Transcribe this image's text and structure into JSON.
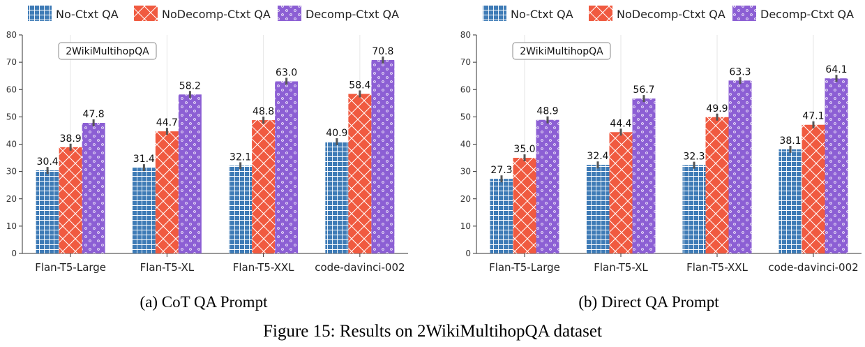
{
  "figure_caption": "Figure 15: Results on 2WikiMultihopQA dataset",
  "colors": {
    "No-Ctxt QA": "#3e7bb6",
    "NoDecomp-Ctxt QA": "#f05a40",
    "Decomp-Ctxt QA": "#8c5fd4"
  },
  "chart_data": [
    {
      "type": "bar",
      "caption": "(a) CoT QA Prompt",
      "annotation": "2WikiMultihopQA",
      "categories": [
        "Flan-T5-Large",
        "Flan-T5-XL",
        "Flan-T5-XXL",
        "code-davinci-002"
      ],
      "series": [
        {
          "name": "No-Ctxt QA",
          "values": [
            30.4,
            31.4,
            32.1,
            40.9
          ],
          "labels": [
            "30.4",
            "31.4",
            "32.1",
            "40.9"
          ]
        },
        {
          "name": "NoDecomp-Ctxt QA",
          "values": [
            38.9,
            44.7,
            48.8,
            58.4
          ],
          "labels": [
            "38.9",
            "44.7",
            "48.8",
            "58.4"
          ]
        },
        {
          "name": "Decomp-Ctxt QA",
          "values": [
            47.8,
            58.2,
            63.0,
            70.8
          ],
          "labels": [
            "47.8",
            "58.2",
            "63.0",
            "70.8"
          ]
        }
      ],
      "ylim": [
        0,
        80
      ],
      "yticks": [
        "0",
        "10",
        "20",
        "30",
        "40",
        "50",
        "60",
        "70",
        "80"
      ],
      "legend": "top",
      "grid": "vertical"
    },
    {
      "type": "bar",
      "caption": "(b) Direct QA Prompt",
      "annotation": "2WikiMultihopQA",
      "categories": [
        "Flan-T5-Large",
        "Flan-T5-XL",
        "Flan-T5-XXL",
        "code-davinci-002"
      ],
      "series": [
        {
          "name": "No-Ctxt QA",
          "values": [
            27.3,
            32.4,
            32.3,
            38.1
          ],
          "labels": [
            "27.3",
            "32.4",
            "32.3",
            "38.1"
          ]
        },
        {
          "name": "NoDecomp-Ctxt QA",
          "values": [
            35.0,
            44.4,
            49.9,
            47.1
          ],
          "labels": [
            "35.0",
            "44.4",
            "49.9",
            "47.1"
          ]
        },
        {
          "name": "Decomp-Ctxt QA",
          "values": [
            48.9,
            56.7,
            63.3,
            64.1
          ],
          "labels": [
            "48.9",
            "56.7",
            "63.3",
            "64.1"
          ]
        }
      ],
      "ylim": [
        0,
        80
      ],
      "yticks": [
        "0",
        "10",
        "20",
        "30",
        "40",
        "50",
        "60",
        "70",
        "80"
      ],
      "legend": "top",
      "grid": "vertical"
    }
  ]
}
